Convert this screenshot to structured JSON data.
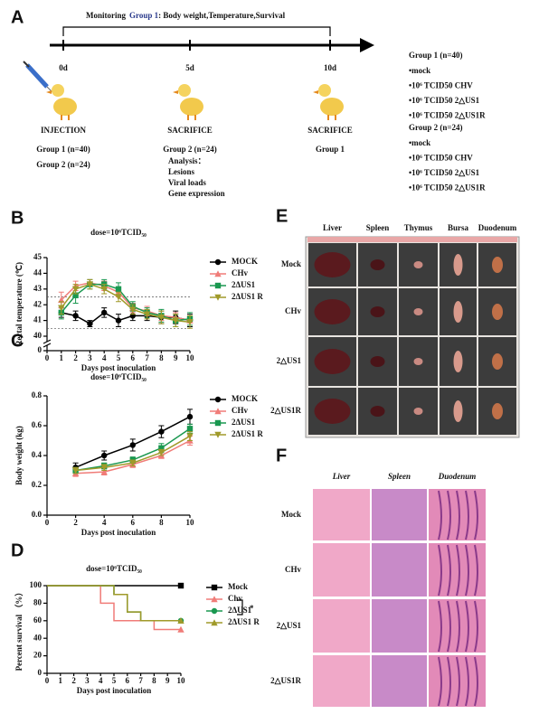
{
  "panel_a": {
    "label": "A",
    "monitoring": {
      "prefix": "Monitoring",
      "group": "Group 1",
      "suffix": ": Body weight,Temperature,Survival"
    },
    "timepoints": [
      "0d",
      "5d",
      "10d"
    ],
    "injection": {
      "title": "INJECTION",
      "groups": [
        "Group 1 (n=40)",
        "Group 2 (n=24)"
      ]
    },
    "sacrifice_5d": {
      "title": "SACRIFICE",
      "group": "Group 2 (n=24)",
      "analysis": [
        "Analysis：",
        "Lesions",
        "Viral loads",
        "Gene expression"
      ]
    },
    "sacrifice_10d": {
      "title": "SACRIFICE",
      "group": "Group 1"
    },
    "groups": [
      {
        "name": "Group 1 (n=40)",
        "items": [
          "•mock",
          "•10⁶ TCID50 CHV",
          "•10⁶ TCID50  2△US1",
          "•10⁶ TCID50  2△US1R"
        ]
      },
      {
        "name": "Group 2 (n=24)",
        "items": [
          "•mock",
          "•10⁶ TCID50 CHV",
          "•10⁶ TCID50  2△US1",
          "•10⁶ TCID50  2△US1R"
        ]
      }
    ]
  },
  "chart_data": [
    {
      "label": "B",
      "type": "line",
      "title": "dose=10⁶TCID₅₀",
      "x_label": "Days post inoculation",
      "y_label": "Rectal temperature (℃)",
      "x": [
        1,
        2,
        3,
        4,
        5,
        6,
        7,
        8,
        9,
        10
      ],
      "xlim": [
        0,
        10
      ],
      "xticks": [
        0,
        1,
        2,
        3,
        4,
        5,
        6,
        7,
        8,
        9,
        10
      ],
      "ylim": [
        40,
        45
      ],
      "yticks": [
        40,
        41,
        42,
        43,
        44,
        45
      ],
      "ybreak_ticks": [
        0
      ],
      "reference_lines": [
        42.5,
        40.5
      ],
      "series": [
        {
          "name": "MOCK",
          "color": "#000000",
          "marker": "circle",
          "values": [
            41.5,
            41.3,
            40.8,
            41.5,
            41.0,
            41.3,
            41.3,
            41.2,
            41.2,
            41.0
          ],
          "errors": [
            0.3,
            0.3,
            0.2,
            0.3,
            0.4,
            0.3,
            0.3,
            0.4,
            0.4,
            0.4
          ]
        },
        {
          "name": "CHv",
          "color": "#f07c78",
          "marker": "triangle",
          "values": [
            42.3,
            43.2,
            43.4,
            43.2,
            42.8,
            41.8,
            41.6,
            41.3,
            41.2,
            41.0
          ],
          "errors": [
            0.5,
            0.3,
            0.2,
            0.3,
            0.3,
            0.3,
            0.3,
            0.3,
            0.3,
            0.3
          ]
        },
        {
          "name": "2ΔUS1",
          "color": "#1a9850",
          "marker": "square",
          "values": [
            41.5,
            42.6,
            43.3,
            43.3,
            43.0,
            41.9,
            41.5,
            41.3,
            41.0,
            41.1
          ],
          "errors": [
            0.4,
            0.5,
            0.3,
            0.3,
            0.4,
            0.3,
            0.3,
            0.4,
            0.4,
            0.4
          ]
        },
        {
          "name": "2ΔUS1 R",
          "color": "#a09a2a",
          "marker": "triangle-down",
          "values": [
            41.8,
            43.0,
            43.3,
            43.0,
            42.5,
            41.7,
            41.4,
            41.2,
            41.0,
            40.9
          ],
          "errors": [
            0.4,
            0.3,
            0.3,
            0.3,
            0.3,
            0.3,
            0.3,
            0.4,
            0.4,
            0.4
          ]
        }
      ]
    },
    {
      "label": "C",
      "type": "line",
      "title": "dose=10⁶TCID₅₀",
      "x_label": "Days post inoculation",
      "y_label": "Body weight (kg)",
      "x": [
        2,
        4,
        6,
        8,
        10
      ],
      "xlim": [
        0,
        10
      ],
      "xticks": [
        0,
        2,
        4,
        6,
        8,
        10
      ],
      "ylim": [
        0,
        0.8
      ],
      "yticks": [
        {
          "value": 0,
          "label": "0.0"
        },
        0.2,
        0.4,
        0.6,
        0.8
      ],
      "series": [
        {
          "name": "MOCK",
          "color": "#000000",
          "marker": "circle",
          "values": [
            0.32,
            0.4,
            0.47,
            0.56,
            0.66
          ],
          "errors": [
            0.03,
            0.03,
            0.04,
            0.04,
            0.05
          ]
        },
        {
          "name": "CHv",
          "color": "#f07c78",
          "marker": "triangle",
          "values": [
            0.28,
            0.29,
            0.34,
            0.4,
            0.5
          ],
          "errors": [
            0.02,
            0.02,
            0.02,
            0.02,
            0.03
          ]
        },
        {
          "name": "2ΔUS1",
          "color": "#1a9850",
          "marker": "square",
          "values": [
            0.3,
            0.33,
            0.37,
            0.45,
            0.58
          ],
          "errors": [
            0.02,
            0.02,
            0.02,
            0.03,
            0.03
          ]
        },
        {
          "name": "2ΔUS1 R",
          "color": "#a09a2a",
          "marker": "triangle-down",
          "values": [
            0.3,
            0.32,
            0.35,
            0.42,
            0.53
          ],
          "errors": [
            0.02,
            0.02,
            0.02,
            0.02,
            0.03
          ]
        }
      ]
    },
    {
      "label": "D",
      "type": "step",
      "title": "dose=10⁶TCID₅₀",
      "x_label": "Days post inoculation",
      "y_label": "Percent survival （%）",
      "xlim": [
        0,
        10
      ],
      "xticks": [
        0,
        1,
        2,
        3,
        4,
        5,
        6,
        7,
        8,
        9,
        10
      ],
      "ylim": [
        0,
        100
      ],
      "yticks": [
        0,
        20,
        40,
        60,
        80,
        100
      ],
      "annotation": "*",
      "series": [
        {
          "name": "Mock",
          "color": "#000000",
          "marker": "square",
          "x": [
            0,
            10
          ],
          "values": [
            100,
            100
          ]
        },
        {
          "name": "Chv",
          "color": "#f07c78",
          "marker": "triangle",
          "x": [
            0,
            4,
            5,
            8,
            10
          ],
          "values": [
            100,
            80,
            60,
            50,
            50
          ]
        },
        {
          "name": "2ΔUS1",
          "color": "#1a9850",
          "marker": "circle",
          "x": [
            0,
            5,
            6,
            7,
            10
          ],
          "values": [
            100,
            90,
            70,
            60,
            60
          ]
        },
        {
          "name": "2ΔUS1 R",
          "color": "#a09a2a",
          "marker": "triangle",
          "x": [
            0,
            5,
            6,
            7,
            10
          ],
          "values": [
            100,
            90,
            70,
            60,
            60
          ]
        }
      ]
    }
  ],
  "panel_e": {
    "label": "E",
    "columns": [
      "Liver",
      "Spleen",
      "Thymus",
      "Bursa",
      "Duodenum"
    ],
    "rows": [
      "Mock",
      "CHv",
      "2△US1",
      "2△US1R"
    ]
  },
  "panel_f": {
    "label": "F",
    "columns": [
      "Liver",
      "Spleen",
      "Duodenum"
    ],
    "rows": [
      "Mock",
      "CHv",
      "2△US1",
      "2△US1R"
    ]
  }
}
